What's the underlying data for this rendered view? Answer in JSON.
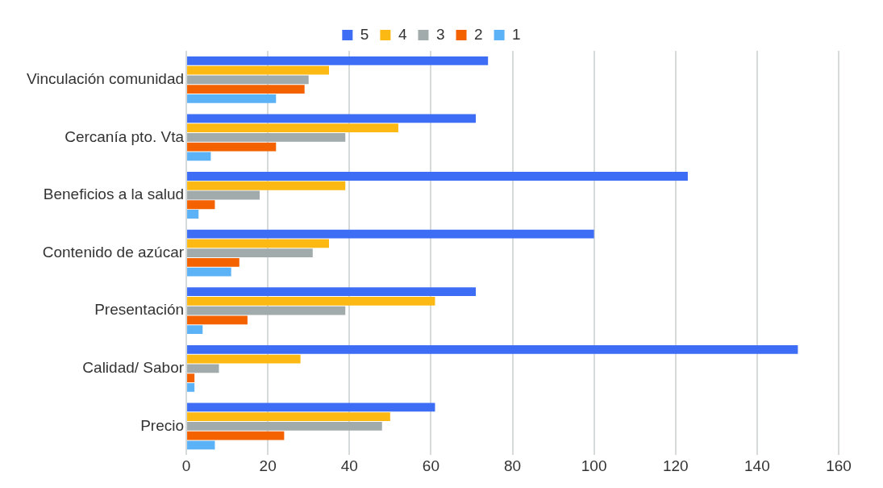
{
  "chart_data": {
    "type": "bar",
    "orientation": "horizontal",
    "categories": [
      "Vinculación comunidad",
      "Cercanía pto. Vta",
      "Beneficios a la salud",
      "Contenido de azúcar",
      "Presentación",
      "Calidad/ Sabor",
      "Precio"
    ],
    "series": [
      {
        "name": "5",
        "color": "#3d6cf5",
        "values": [
          74,
          71,
          123,
          100,
          71,
          150,
          61
        ]
      },
      {
        "name": "4",
        "color": "#fdb913",
        "values": [
          35,
          52,
          39,
          35,
          61,
          28,
          50
        ]
      },
      {
        "name": "3",
        "color": "#a2abab",
        "values": [
          30,
          39,
          18,
          31,
          39,
          8,
          48
        ]
      },
      {
        "name": "2",
        "color": "#f46200",
        "values": [
          29,
          22,
          7,
          13,
          15,
          2,
          24
        ]
      },
      {
        "name": "1",
        "color": "#5cb2f7",
        "values": [
          22,
          6,
          3,
          11,
          4,
          2,
          7
        ]
      }
    ],
    "xlim": [
      0,
      160
    ],
    "xticks": [
      0,
      20,
      40,
      60,
      80,
      100,
      120,
      140,
      160
    ],
    "grid": "x",
    "legend": "top"
  }
}
